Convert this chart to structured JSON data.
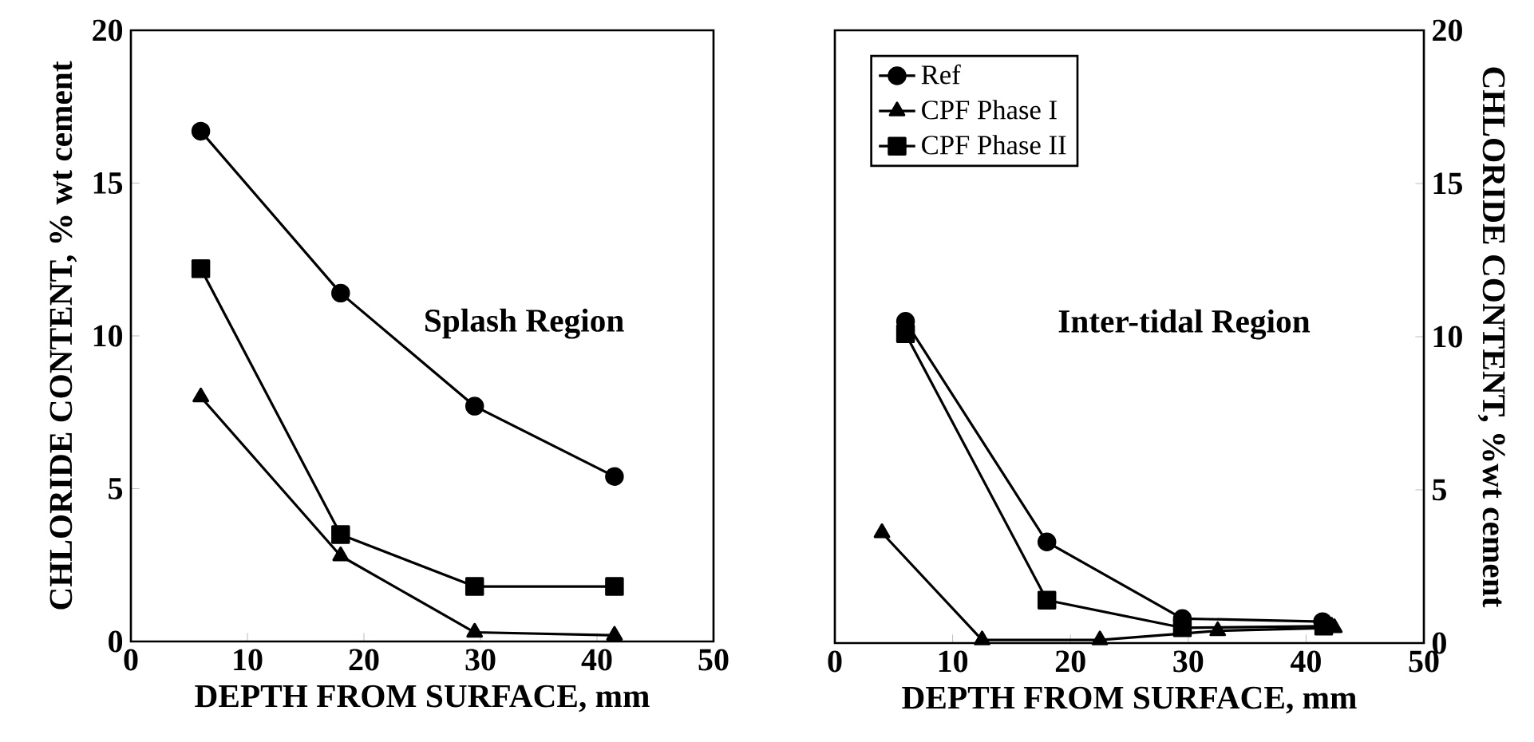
{
  "chart_data": [
    {
      "type": "line",
      "xlabel": "DEPTH FROM SURFACE, mm",
      "ylabel": "CHLORIDE CONTENT, %  wt cement",
      "annotations": [
        "Splash Region"
      ],
      "xlim": [
        0,
        50
      ],
      "xticks": [
        0,
        10,
        20,
        30,
        40,
        50
      ],
      "ylim": [
        0,
        20
      ],
      "yticks": [
        0,
        5,
        10,
        15,
        20
      ],
      "legend": false,
      "series": [
        {
          "color": "#000000",
          "marker": "circle",
          "x": [
            6,
            18,
            29.5,
            41.5
          ],
          "values": [
            16.7,
            11.4,
            7.7,
            5.4
          ]
        },
        {
          "color": "#000000",
          "marker": "triangle",
          "x": [
            6,
            18,
            29.5,
            41.5
          ],
          "values": [
            8.0,
            2.8,
            0.3,
            0.2
          ]
        },
        {
          "color": "#000000",
          "marker": "square",
          "x": [
            6,
            18,
            29.5,
            41.5
          ],
          "values": [
            12.2,
            3.5,
            1.8,
            1.8
          ]
        }
      ]
    },
    {
      "type": "line",
      "xlabel": "DEPTH FROM SURFACE, mm",
      "ylabel": "CHLORIDE CONTENT, %wt cement",
      "annotations": [
        "Inter-tidal Region"
      ],
      "xlim": [
        0,
        50
      ],
      "xticks": [
        0,
        10,
        20,
        30,
        40,
        50
      ],
      "ylim": [
        0,
        20
      ],
      "yticks": [
        0,
        5,
        10,
        15,
        20
      ],
      "legend": "top left",
      "series": [
        {
          "name": "Ref",
          "color": "#000000",
          "marker": "circle",
          "x": [
            6,
            18,
            29.5,
            41.4
          ],
          "values": [
            10.5,
            3.3,
            0.8,
            0.7
          ]
        },
        {
          "name": "CPF Phase I",
          "color": "#000000",
          "marker": "triangle",
          "x": [
            4,
            12.5,
            22.5,
            32.5,
            42.4
          ],
          "values": [
            3.6,
            0.1,
            0.1,
            0.4,
            0.5
          ]
        },
        {
          "name": "CPF Phase II",
          "color": "#000000",
          "marker": "square",
          "x": [
            6,
            18,
            29.5,
            41.5
          ],
          "values": [
            10.1,
            1.4,
            0.5,
            0.55
          ]
        }
      ]
    }
  ]
}
